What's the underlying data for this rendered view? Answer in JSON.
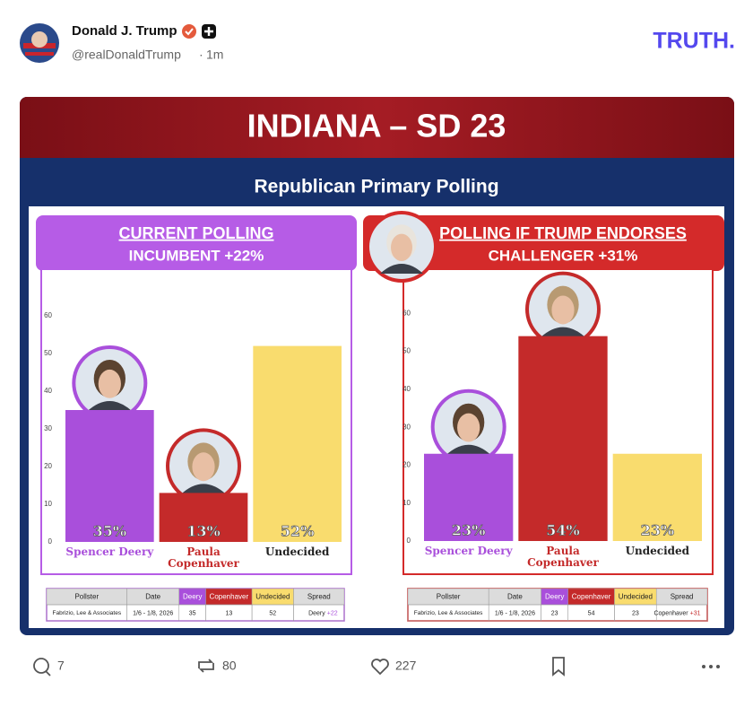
{
  "post": {
    "author": "Donald J. Trump",
    "handle": "@realDonaldTrump",
    "time": "1m",
    "logo": "TRUTH.",
    "replies": 7,
    "reposts": 80,
    "likes": 227
  },
  "image": {
    "title": "INDIANA – SD 23",
    "subtitle": "Republican Primary Polling"
  },
  "chart_data": [
    {
      "type": "bar",
      "title": "CURRENT POLLING",
      "subtitle": "INCUMBENT +22%",
      "categories": [
        "Spencer Deery",
        "Paula Copenhaver",
        "Undecided"
      ],
      "values": [
        35,
        13,
        52
      ],
      "value_labels": [
        "35%",
        "13%",
        "52%"
      ],
      "colors": [
        "#a94fdb",
        "#c42a2a",
        "#f9dc6e"
      ],
      "label_colors": [
        "#a94fdb",
        "#c42a2a",
        "#222222"
      ],
      "accent": "#b65ce6",
      "ylim": [
        0,
        70
      ],
      "yticks": [
        0,
        10,
        20,
        30,
        40,
        50,
        60
      ],
      "table": {
        "header": [
          "Pollster",
          "Date",
          "Deery",
          "Copenhaver",
          "Undecided",
          "Spread"
        ],
        "rows": [
          [
            "Fabrizio, Lee & Associates",
            "1/6 - 1/8, 2026",
            "35",
            "13",
            "52"
          ]
        ],
        "spread": {
          "name": "Deery",
          "value": "+22"
        }
      }
    },
    {
      "type": "bar",
      "title": "POLLING IF TRUMP ENDORSES",
      "subtitle": "CHALLENGER +31%",
      "categories": [
        "Spencer Deery",
        "Paula Copenhaver",
        "Undecided"
      ],
      "values": [
        23,
        54,
        23
      ],
      "value_labels": [
        "23%",
        "54%",
        "23%"
      ],
      "colors": [
        "#a94fdb",
        "#c42a2a",
        "#f9dc6e"
      ],
      "label_colors": [
        "#a94fdb",
        "#c42a2a",
        "#222222"
      ],
      "accent": "#d42a2a",
      "ylim": [
        0,
        70
      ],
      "yticks": [
        0,
        10,
        20,
        30,
        40,
        50,
        60
      ],
      "table": {
        "header": [
          "Pollster",
          "Date",
          "Deery",
          "Copenhaver",
          "Undecided",
          "Spread"
        ],
        "rows": [
          [
            "Fabrizio, Lee & Associates",
            "1/6 - 1/8, 2026",
            "23",
            "54",
            "23"
          ]
        ],
        "spread": {
          "name": "Copenhaver",
          "value": "+31"
        }
      }
    }
  ]
}
